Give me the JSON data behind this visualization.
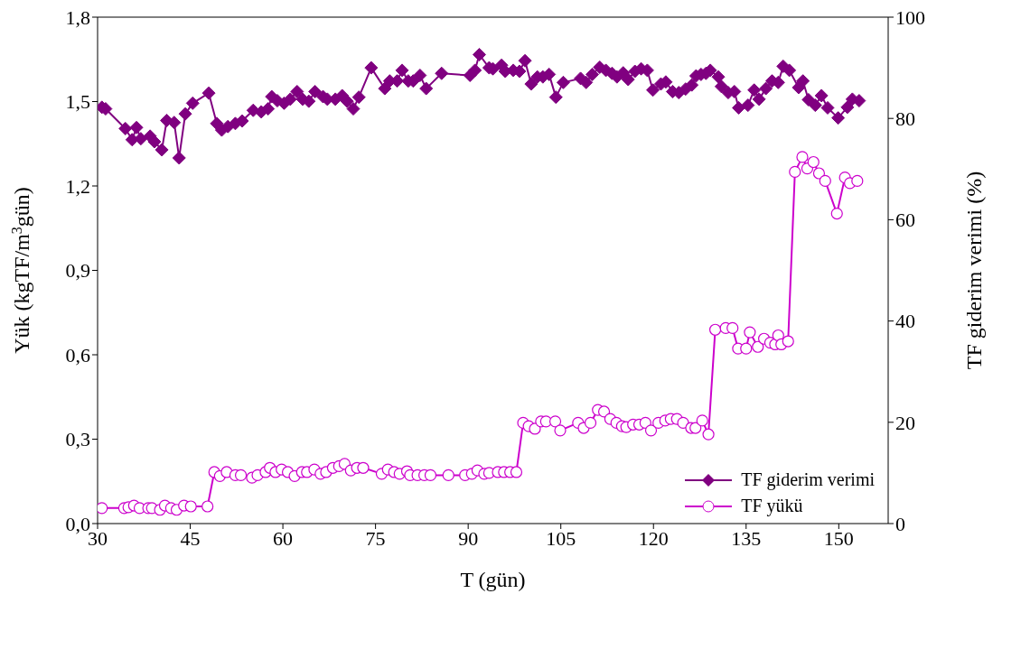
{
  "chart_data": {
    "type": "line",
    "xlabel": "T (gün)",
    "ylabel": "Yük (kgTF/m$^{3}$gün)",
    "y2label": "TF giderim verimi (%)",
    "xlim": [
      30,
      158
    ],
    "xticks": [
      30,
      45,
      60,
      75,
      90,
      105,
      120,
      135,
      150
    ],
    "ylim": [
      0,
      1.8
    ],
    "yticks": [
      {
        "value": 0,
        "label": "0,0"
      },
      {
        "value": 0.3,
        "label": "0,3"
      },
      {
        "value": 0.6,
        "label": "0,6"
      },
      {
        "value": 0.9,
        "label": "0,9"
      },
      {
        "value": 1.2,
        "label": "1,2"
      },
      {
        "value": 1.5,
        "label": "1,5"
      },
      {
        "value": 1.8,
        "label": "1,8"
      }
    ],
    "y2lim": [
      0,
      100
    ],
    "y2ticks": [
      0,
      20,
      40,
      60,
      80,
      100
    ],
    "grid": false,
    "legend": "bottom right",
    "line_style": "solid",
    "series": [
      {
        "name": "TF giderim verimi",
        "color": "#800080",
        "axis": "y2",
        "marker": "diamond",
        "x": [
          30.7,
          31.3,
          34.5,
          35.6,
          36.3,
          37.0,
          38.5,
          39.2,
          40.4,
          41.2,
          42.4,
          43.2,
          44.2,
          45.4,
          48.0,
          49.3,
          50.1,
          51.1,
          52.3,
          53.4,
          55.2,
          56.5,
          57.6,
          58.2,
          59.1,
          60.2,
          61.2,
          62.3,
          63.2,
          64.2,
          65.2,
          66.5,
          67.2,
          68.5,
          69.6,
          70.4,
          71.4,
          72.3,
          74.3,
          76.5,
          77.3,
          78.5,
          79.3,
          80.3,
          81.1,
          82.2,
          83.2,
          85.7,
          90.3,
          91.1,
          91.8,
          93.4,
          94.0,
          95.4,
          96.0,
          97.3,
          98.3,
          99.2,
          100.2,
          101.2,
          102.1,
          103.1,
          104.2,
          105.4,
          108.2,
          109.1,
          110.1,
          111.3,
          112.3,
          113.3,
          114.1,
          115.1,
          115.9,
          117.0,
          118.0,
          119.0,
          119.9,
          121.2,
          122.0,
          123.1,
          124.1,
          125.2,
          126.2,
          126.9,
          127.7,
          128.5,
          129.2,
          130.5,
          131.0,
          132.1,
          133.1,
          133.8,
          135.3,
          136.3,
          137.1,
          138.2,
          139.2,
          140.2,
          141.0,
          142.0,
          143.5,
          144.2,
          145.1,
          146.2,
          147.2,
          148.2,
          149.9,
          151.4,
          152.2,
          153.3
        ],
        "values": [
          82.2,
          81.9,
          78.0,
          75.8,
          78.2,
          76.0,
          76.5,
          75.4,
          73.8,
          79.6,
          79.2,
          72.2,
          80.9,
          83.0,
          85.0,
          79.0,
          77.7,
          78.4,
          79.0,
          79.5,
          81.6,
          81.3,
          81.9,
          84.3,
          83.5,
          83.0,
          83.8,
          85.3,
          83.8,
          83.4,
          85.3,
          84.3,
          83.8,
          83.8,
          84.5,
          83.4,
          81.9,
          84.2,
          90.0,
          85.9,
          87.4,
          87.4,
          89.5,
          87.4,
          87.4,
          88.5,
          85.9,
          88.9,
          88.5,
          89.5,
          92.6,
          90.0,
          89.8,
          90.5,
          89.3,
          89.5,
          89.3,
          91.4,
          86.8,
          88.2,
          88.2,
          88.7,
          84.2,
          87.1,
          87.9,
          87.1,
          88.7,
          90.1,
          89.5,
          88.9,
          88.2,
          89.0,
          87.7,
          89.3,
          89.8,
          89.5,
          85.6,
          86.8,
          87.2,
          85.3,
          85.1,
          85.8,
          86.6,
          88.4,
          88.7,
          88.9,
          89.5,
          88.2,
          86.3,
          85.1,
          85.3,
          82.1,
          82.6,
          85.6,
          83.8,
          85.9,
          87.4,
          87.1,
          90.3,
          89.5,
          86.1,
          87.4,
          83.7,
          82.6,
          84.5,
          82.1,
          80.1,
          82.2,
          83.8,
          83.5
        ]
      },
      {
        "name": "TF yükü",
        "color": "#cc00cc",
        "marker": "circle",
        "x": [
          30.7,
          34.3,
          35.0,
          35.9,
          36.8,
          38.2,
          38.8,
          40.1,
          40.9,
          41.9,
          42.8,
          44.0,
          45.1,
          47.8,
          48.9,
          49.8,
          50.9,
          52.3,
          53.2,
          55.0,
          55.9,
          57.2,
          57.9,
          58.8,
          59.8,
          60.8,
          61.9,
          63.1,
          63.9,
          65.1,
          66.1,
          67.0,
          68.1,
          69.1,
          70.0,
          71.0,
          72.0,
          73.0,
          76.0,
          77.0,
          78.0,
          78.9,
          80.1,
          80.6,
          81.8,
          82.9,
          83.9,
          86.8,
          89.5,
          90.6,
          91.5,
          92.6,
          93.4,
          94.8,
          95.8,
          96.8,
          97.8,
          98.9,
          99.8,
          100.8,
          101.8,
          102.6,
          104.1,
          104.9,
          107.8,
          108.7,
          109.8,
          111.0,
          112.0,
          113.0,
          114.0,
          114.9,
          115.6,
          116.7,
          117.7,
          118.7,
          119.6,
          120.8,
          121.9,
          122.8,
          123.8,
          124.8,
          126.1,
          126.8,
          127.9,
          128.9,
          130.0,
          131.7,
          132.8,
          133.7,
          135.0,
          135.6,
          136.9,
          137.9,
          138.9,
          139.7,
          140.2,
          140.7,
          141.8,
          142.9,
          144.1,
          144.9,
          145.9,
          146.8,
          147.8,
          149.7,
          151.0,
          151.8,
          153.0
        ],
        "values": [
          0.055,
          0.055,
          0.058,
          0.064,
          0.055,
          0.055,
          0.055,
          0.049,
          0.064,
          0.055,
          0.049,
          0.064,
          0.061,
          0.061,
          0.183,
          0.169,
          0.183,
          0.172,
          0.172,
          0.163,
          0.172,
          0.183,
          0.198,
          0.183,
          0.192,
          0.183,
          0.169,
          0.183,
          0.183,
          0.192,
          0.177,
          0.183,
          0.198,
          0.204,
          0.212,
          0.189,
          0.198,
          0.198,
          0.177,
          0.192,
          0.183,
          0.177,
          0.186,
          0.172,
          0.172,
          0.172,
          0.172,
          0.172,
          0.172,
          0.177,
          0.189,
          0.177,
          0.18,
          0.183,
          0.183,
          0.183,
          0.183,
          0.358,
          0.346,
          0.337,
          0.363,
          0.363,
          0.363,
          0.331,
          0.358,
          0.34,
          0.358,
          0.404,
          0.398,
          0.372,
          0.358,
          0.346,
          0.343,
          0.352,
          0.352,
          0.358,
          0.331,
          0.358,
          0.366,
          0.372,
          0.372,
          0.358,
          0.34,
          0.34,
          0.366,
          0.317,
          0.689,
          0.695,
          0.695,
          0.622,
          0.622,
          0.68,
          0.628,
          0.657,
          0.643,
          0.637,
          0.669,
          0.637,
          0.648,
          1.25,
          1.303,
          1.262,
          1.285,
          1.245,
          1.218,
          1.102,
          1.23,
          1.21,
          1.218
        ]
      }
    ]
  }
}
